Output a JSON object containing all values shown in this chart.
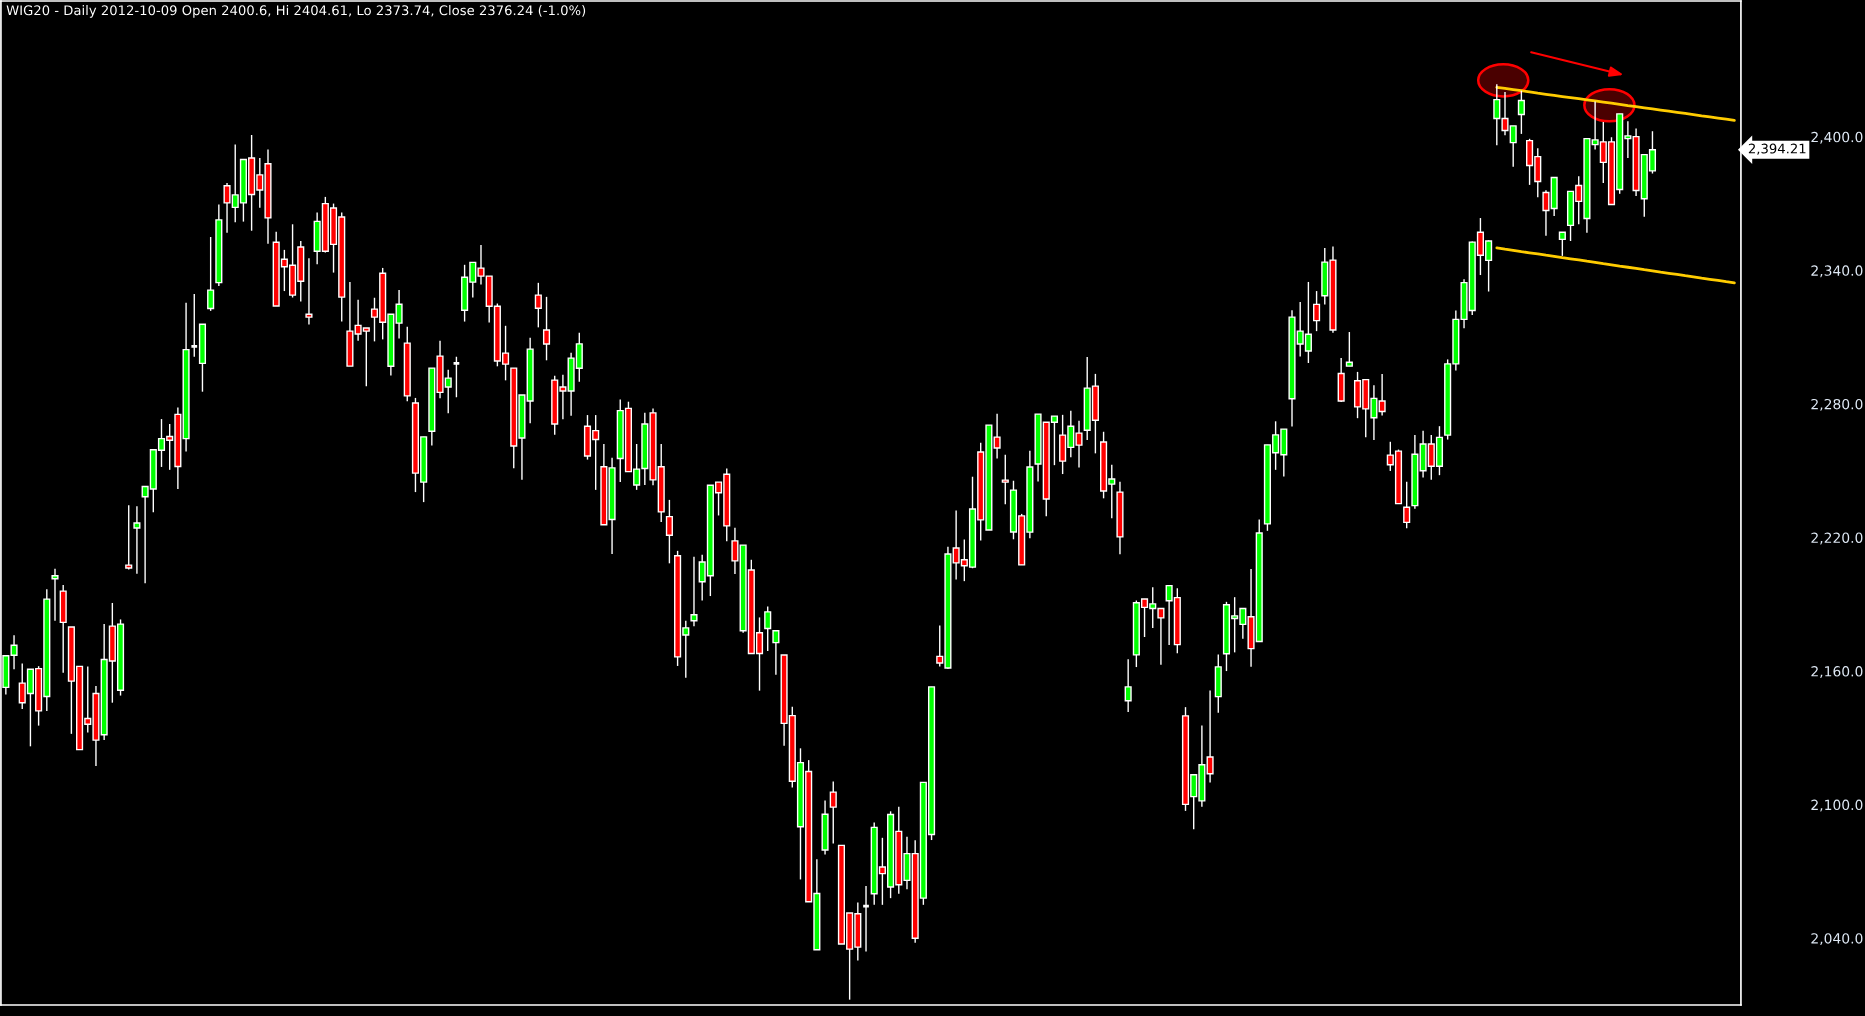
{
  "chart_data": {
    "type": "candlestick",
    "title": "WIG20 - Daily 2012-10-09 Open 2400.6, Hi 2404.61, Lo 2373.74, Close 2376.24 (-1.0%)",
    "categories": [
      null,
      null,
      null,
      null,
      null,
      null,
      null,
      null,
      null,
      null,
      null,
      null,
      null,
      null,
      null,
      null,
      null,
      null,
      null,
      null,
      null,
      null,
      null,
      null,
      null,
      null,
      null,
      null,
      null,
      null,
      null,
      null,
      null,
      null,
      null,
      null,
      null,
      null,
      null,
      null,
      null,
      null,
      null,
      null,
      null,
      null,
      null,
      null,
      null,
      null,
      null,
      null,
      null,
      null,
      null,
      null,
      null,
      null,
      null,
      null,
      null,
      null,
      null,
      null,
      null,
      null,
      null,
      null,
      null,
      null,
      null,
      null,
      null,
      null,
      null,
      null,
      null,
      null,
      null,
      null,
      null,
      null,
      null,
      null,
      null,
      null,
      null,
      null,
      null,
      null,
      null,
      null,
      null,
      null,
      null,
      null,
      null,
      null,
      null,
      null,
      null,
      null,
      null,
      null,
      null,
      null,
      null,
      null,
      null,
      null,
      null,
      null,
      null,
      null,
      null,
      null,
      null,
      null,
      null,
      null,
      null,
      null,
      null,
      null,
      null,
      null,
      null,
      null,
      null,
      null,
      null,
      null,
      null,
      null,
      null,
      null,
      null,
      null,
      null,
      null,
      null,
      null,
      null,
      null,
      null,
      null,
      null,
      null,
      null,
      null,
      null,
      null,
      null,
      null,
      null,
      null,
      null,
      null,
      null,
      null,
      null,
      null,
      null,
      null,
      null,
      null,
      null,
      null,
      null,
      null,
      null,
      null,
      null,
      null,
      null,
      null,
      null,
      null,
      null,
      null,
      null,
      null,
      null,
      null,
      null,
      null,
      null,
      null,
      null,
      null,
      null,
      null,
      null,
      null,
      null,
      null,
      null,
      null,
      null,
      null,
      null,
      null,
      null,
      null,
      null,
      null,
      null,
      null,
      null,
      null,
      null,
      null
    ],
    "ohlc": [
      [
        2152.7,
        2166.9,
        2149.5,
        2166.9
      ],
      [
        2167.1,
        2176.1,
        2160.8,
        2171.6
      ],
      [
        2154.6,
        2163.4,
        2143.0,
        2145.8
      ],
      [
        2149.9,
        2160.8,
        2126.2,
        2160.8
      ],
      [
        2161.1,
        2162.2,
        2135.5,
        2142.1
      ],
      [
        2148.6,
        2196.8,
        2142.1,
        2192.3
      ],
      [
        2201.5,
        2206.0,
        2182.6,
        2202.8
      ],
      [
        2195.9,
        2198.7,
        2159.3,
        2181.9
      ],
      [
        2179.8,
        2179.8,
        2131.8,
        2155.5
      ],
      [
        2162.1,
        2162.1,
        2124.7,
        2124.7
      ],
      [
        2138.7,
        2162.1,
        2132.4,
        2136.1
      ],
      [
        2149.9,
        2153.3,
        2117.4,
        2129.0
      ],
      [
        2131.4,
        2181.1,
        2129.0,
        2165.2
      ],
      [
        2180.2,
        2190.6,
        2145.8,
        2164.5
      ],
      [
        2151.4,
        2183.2,
        2149.0,
        2181.1
      ],
      [
        2207.6,
        2234.5,
        2205.6,
        2206.3
      ],
      [
        2224.3,
        2234.0,
        2203.7,
        2226.5
      ],
      [
        2238.3,
        2242.9,
        2199.4,
        2242.9
      ],
      [
        2241.8,
        2259.4,
        2231.4,
        2259.4
      ],
      [
        2259.2,
        2273.2,
        2251.7,
        2264.4
      ],
      [
        2265.4,
        2271.0,
        2250.4,
        2263.7
      ],
      [
        2275.3,
        2278.4,
        2241.8,
        2251.9
      ],
      [
        2264.4,
        2325.5,
        2258.6,
        2304.4
      ],
      [
        2305.9,
        2329.4,
        2301.2,
        2305.9
      ],
      [
        2298.2,
        2315.8,
        2285.5,
        2315.8
      ],
      [
        2322.9,
        2355.0,
        2321.8,
        2331.1
      ],
      [
        2334.5,
        2369.6,
        2333.0,
        2362.7
      ],
      [
        2378.0,
        2379.3,
        2356.9,
        2370.3
      ],
      [
        2368.3,
        2396.5,
        2361.6,
        2373.9
      ],
      [
        2370.3,
        2389.8,
        2361.9,
        2389.8
      ],
      [
        2390.5,
        2400.8,
        2357.8,
        2374.1
      ],
      [
        2382.9,
        2390.5,
        2368.1,
        2376.1
      ],
      [
        2387.9,
        2394.3,
        2351.9,
        2363.6
      ],
      [
        2352.6,
        2357.3,
        2324.0,
        2324.0
      ],
      [
        2345.0,
        2349.2,
        2330.7,
        2341.6
      ],
      [
        2342.3,
        2360.7,
        2327.8,
        2328.9
      ],
      [
        2350.5,
        2353.2,
        2326.0,
        2335.1
      ],
      [
        2320.3,
        2345.4,
        2315.7,
        2319.0
      ],
      [
        2348.6,
        2366.0,
        2342.8,
        2362.0
      ],
      [
        2370.0,
        2373.0,
        2348.0,
        2348.6
      ],
      [
        2368.0,
        2370.0,
        2339.0,
        2351.7
      ],
      [
        2364.0,
        2366.0,
        2317.0,
        2328.0
      ],
      [
        2312.7,
        2334.8,
        2297.0,
        2297.0
      ],
      [
        2315.3,
        2326.8,
        2308.4,
        2311.4
      ],
      [
        2314.1,
        2314.1,
        2287.9,
        2312.7
      ],
      [
        2322.6,
        2327.7,
        2308.1,
        2319.0
      ],
      [
        2338.7,
        2341.1,
        2309.0,
        2316.7
      ],
      [
        2296.9,
        2320.3,
        2292.8,
        2320.3
      ],
      [
        2316.3,
        2331.2,
        2309.4,
        2324.8
      ],
      [
        2307.3,
        2314.7,
        2281.2,
        2283.6
      ],
      [
        2280.4,
        2282.7,
        2240.4,
        2248.9
      ],
      [
        2244.9,
        2265.2,
        2235.9,
        2265.2
      ],
      [
        2267.7,
        2296.1,
        2261.3,
        2296.1
      ],
      [
        2301.5,
        2308.4,
        2282.5,
        2285.2
      ],
      [
        2287.6,
        2295.4,
        2275.8,
        2291.6
      ],
      [
        2298.2,
        2301.2,
        2283.0,
        2298.2
      ],
      [
        2322.1,
        2342.5,
        2317.0,
        2336.9
      ],
      [
        2334.7,
        2343.6,
        2327.8,
        2343.6
      ],
      [
        2341.0,
        2351.4,
        2333.6,
        2337.4
      ],
      [
        2337.4,
        2337.4,
        2316.6,
        2323.9
      ],
      [
        2323.9,
        2325.1,
        2296.9,
        2299.3
      ],
      [
        2302.8,
        2315.1,
        2290.6,
        2297.9
      ],
      [
        2296.1,
        2296.1,
        2251.1,
        2261.1
      ],
      [
        2264.7,
        2284.0,
        2245.9,
        2284.0
      ],
      [
        2281.3,
        2309.7,
        2271.3,
        2304.6
      ],
      [
        2328.9,
        2334.4,
        2314.4,
        2323.0
      ],
      [
        2313.2,
        2328.1,
        2299.6,
        2306.9
      ],
      [
        2290.7,
        2292.7,
        2266.2,
        2271.0
      ],
      [
        2287.6,
        2293.1,
        2273.1,
        2285.8
      ],
      [
        2285.8,
        2303.0,
        2274.7,
        2300.6
      ],
      [
        2296.0,
        2312.0,
        2290.0,
        2307.0
      ],
      [
        2270.0,
        2275.0,
        2255.0,
        2256.6
      ],
      [
        2268.0,
        2275.0,
        2241.4,
        2264.0
      ],
      [
        2251.8,
        2262.0,
        2225.7,
        2225.7
      ],
      [
        2228.1,
        2255.8,
        2212.6,
        2251.3
      ],
      [
        2255.5,
        2282.0,
        2244.9,
        2277.0
      ],
      [
        2278.0,
        2281.0,
        2249.6,
        2249.6
      ],
      [
        2243.6,
        2262.0,
        2241.4,
        2250.7
      ],
      [
        2251.0,
        2276.0,
        2243.6,
        2271.0
      ],
      [
        2276.0,
        2278.0,
        2243.5,
        2245.9
      ],
      [
        2251.8,
        2262.0,
        2227.0,
        2231.5
      ],
      [
        2229.4,
        2236.9,
        2208.4,
        2221.0
      ],
      [
        2211.8,
        2214.0,
        2162.3,
        2166.4
      ],
      [
        2176.2,
        2182.6,
        2157.0,
        2179.4
      ],
      [
        2182.6,
        2211.4,
        2180.1,
        2185.3
      ],
      [
        2200.1,
        2212.2,
        2191.7,
        2209.0
      ],
      [
        2202.8,
        2243.5,
        2193.7,
        2243.5
      ],
      [
        2244.9,
        2244.9,
        2229.9,
        2240.1
      ],
      [
        2248.4,
        2251.0,
        2218.3,
        2225.2
      ],
      [
        2218.5,
        2224.4,
        2203.6,
        2209.5
      ],
      [
        2178.1,
        2216.6,
        2177.2,
        2216.6
      ],
      [
        2205.4,
        2210.0,
        2167.9,
        2167.9
      ],
      [
        2177.2,
        2184.1,
        2151.2,
        2167.9
      ],
      [
        2179.1,
        2189.0,
        2169.0,
        2186.6
      ],
      [
        2172.8,
        2178.1,
        2158.4,
        2178.1
      ],
      [
        2167.2,
        2167.2,
        2126.4,
        2136.5
      ],
      [
        2140.0,
        2144.0,
        2107.7,
        2110.5
      ],
      [
        2090.1,
        2125.3,
        2066.4,
        2118.9
      ],
      [
        2114.9,
        2120.0,
        2056.4,
        2056.4
      ],
      [
        2034.8,
        2075.5,
        2034.8,
        2060.1
      ],
      [
        2079.6,
        2101.9,
        2077.6,
        2095.7
      ],
      [
        2105.6,
        2110.4,
        2082.5,
        2098.9
      ],
      [
        2081.7,
        2081.7,
        2037.4,
        2037.4
      ],
      [
        2051.3,
        2051.3,
        2012.4,
        2035.1
      ],
      [
        2051.0,
        2056.0,
        2030.0,
        2036.0
      ],
      [
        2054.4,
        2063.5,
        2034.0,
        2054.4
      ],
      [
        2060.0,
        2092.0,
        2055.0,
        2089.8
      ],
      [
        2072.0,
        2085.1,
        2055.0,
        2069.0
      ],
      [
        2063.0,
        2097.0,
        2058.0,
        2095.6
      ],
      [
        2088.0,
        2099.0,
        2060.0,
        2064.0
      ],
      [
        2066.0,
        2085.6,
        2062.0,
        2078.0
      ],
      [
        2078.0,
        2084.0,
        2038.0,
        2040.0
      ],
      [
        2058.0,
        2110.0,
        2055.0,
        2110.0
      ],
      [
        2086.6,
        2152.9,
        2084.1,
        2152.9
      ],
      [
        2166.6,
        2180.5,
        2162.1,
        2163.6
      ],
      [
        2161.4,
        2215.9,
        2161.1,
        2212.6
      ],
      [
        2215.3,
        2232.1,
        2201.1,
        2208.6
      ],
      [
        2210.0,
        2219.1,
        2200.4,
        2207.3
      ],
      [
        2206.7,
        2247.3,
        2206.2,
        2232.8
      ],
      [
        2258.4,
        2262.6,
        2218.6,
        2227.9
      ],
      [
        2223.4,
        2270.5,
        2223.4,
        2270.5
      ],
      [
        2265.1,
        2275.6,
        2255.5,
        2260.2
      ],
      [
        2245.8,
        2257.2,
        2234.9,
        2244.9
      ],
      [
        2222.5,
        2245.5,
        2219.2,
        2241.3
      ],
      [
        2229.7,
        2230.6,
        2207.7,
        2207.7
      ],
      [
        2222.4,
        2259.0,
        2219.7,
        2251.7
      ],
      [
        2253.0,
        2275.4,
        2245.2,
        2275.4
      ],
      [
        2271.8,
        2271.8,
        2229.5,
        2237.3
      ],
      [
        2271.8,
        2274.5,
        2252.5,
        2274.5
      ],
      [
        2266.0,
        2275.1,
        2248.5,
        2254.3
      ],
      [
        2260.5,
        2276.9,
        2256.0,
        2270.0
      ],
      [
        2266.9,
        2272.4,
        2251.5,
        2261.5
      ],
      [
        2268.2,
        2301.1,
        2263.8,
        2287.1
      ],
      [
        2288.0,
        2293.5,
        2257.8,
        2272.7
      ],
      [
        2262.9,
        2267.5,
        2237.6,
        2240.9
      ],
      [
        2244.0,
        2252.7,
        2228.6,
        2246.3
      ],
      [
        2240.4,
        2245.1,
        2212.5,
        2220.3
      ],
      [
        2146.7,
        2165.3,
        2141.6,
        2152.9
      ],
      [
        2167.3,
        2191.7,
        2161.8,
        2190.7
      ],
      [
        2192.4,
        2192.4,
        2175.3,
        2188.6
      ],
      [
        2188.1,
        2197.7,
        2179.4,
        2190.2
      ],
      [
        2188.1,
        2188.1,
        2162.8,
        2183.9
      ],
      [
        2191.6,
        2198.4,
        2171.7,
        2198.4
      ],
      [
        2193.0,
        2197.2,
        2168.0,
        2171.9
      ],
      [
        2139.9,
        2143.8,
        2097.2,
        2100.1
      ],
      [
        2103.6,
        2113.4,
        2089.0,
        2113.4
      ],
      [
        2101.7,
        2135.6,
        2099.1,
        2117.9
      ],
      [
        2121.4,
        2151.3,
        2109.9,
        2113.9
      ],
      [
        2148.5,
        2167.5,
        2141.3,
        2161.9
      ],
      [
        2167.8,
        2191.1,
        2160.0,
        2189.8
      ],
      [
        2183.6,
        2193.2,
        2168.4,
        2184.8
      ],
      [
        2181.0,
        2188.1,
        2174.5,
        2188.1
      ],
      [
        2184.4,
        2205.9,
        2161.9,
        2170.1
      ],
      [
        2173.3,
        2228.1,
        2173.3,
        2222.0
      ],
      [
        2226.1,
        2261.6,
        2223.0,
        2261.6
      ],
      [
        2258.1,
        2272.2,
        2250.4,
        2266.1
      ],
      [
        2257.2,
        2268.7,
        2247.4,
        2268.7
      ],
      [
        2282.3,
        2322.1,
        2269.9,
        2319.0
      ],
      [
        2306.9,
        2325.8,
        2301.3,
        2312.7
      ],
      [
        2303.8,
        2334.8,
        2298.4,
        2311.3
      ],
      [
        2324.7,
        2330.7,
        2312.7,
        2317.4
      ],
      [
        2328.6,
        2350.0,
        2324.7,
        2343.7
      ],
      [
        2344.6,
        2350.7,
        2312.0,
        2313.2
      ],
      [
        2293.7,
        2300.6,
        2280.9,
        2281.3
      ],
      [
        2297.0,
        2312.3,
        2297.0,
        2298.7
      ],
      [
        2290.4,
        2294.4,
        2273.6,
        2278.7
      ],
      [
        2290.9,
        2290.9,
        2265.0,
        2277.8
      ],
      [
        2273.8,
        2288.4,
        2263.8,
        2282.5
      ],
      [
        2281.3,
        2293.5,
        2274.8,
        2276.6
      ],
      [
        2257.0,
        2263.0,
        2249.9,
        2252.7
      ],
      [
        2258.8,
        2259.5,
        2235.2,
        2235.2
      ],
      [
        2233.6,
        2245.0,
        2224.2,
        2226.8
      ],
      [
        2234.3,
        2266.1,
        2232.9,
        2257.4
      ],
      [
        2250.0,
        2268.0,
        2247.0,
        2262.0
      ],
      [
        2262.0,
        2266.0,
        2246.0,
        2252.0
      ],
      [
        2252.0,
        2270.0,
        2248.0,
        2265.0
      ],
      [
        2266.0,
        2300.0,
        2264.0,
        2298.0
      ],
      [
        2298.0,
        2322.0,
        2295.0,
        2318.0
      ],
      [
        2318.0,
        2336.0,
        2314.0,
        2334.5
      ],
      [
        2322.0,
        2353.0,
        2320.0,
        2352.7
      ],
      [
        2357.1,
        2363.5,
        2337.9,
        2346.8
      ],
      [
        2344.5,
        2353.5,
        2330.5,
        2353.2
      ],
      [
        2408.2,
        2423.6,
        2396.2,
        2416.7
      ],
      [
        2408.2,
        2420.1,
        2400.7,
        2402.8
      ],
      [
        2397.4,
        2404.9,
        2386.5,
        2404.9
      ],
      [
        2410.0,
        2420.7,
        2401.3,
        2416.3
      ],
      [
        2398.3,
        2399.1,
        2378.4,
        2387.1
      ],
      [
        2391.1,
        2394.9,
        2372.8,
        2379.9
      ],
      [
        2375.0,
        2376.0,
        2355.6,
        2366.9
      ],
      [
        2367.8,
        2381.7,
        2364.4,
        2381.7
      ],
      [
        2353.9,
        2357.1,
        2346.5,
        2357.1
      ],
      [
        2360.2,
        2375.5,
        2353.2,
        2375.5
      ],
      [
        2378.1,
        2382.3,
        2360.7,
        2371.0
      ],
      [
        2363.3,
        2399.2,
        2356.9,
        2399.2
      ],
      [
        2396.5,
        2415.9,
        2394.3,
        2398.6
      ],
      [
        2397.7,
        2406.7,
        2379.3,
        2388.5
      ],
      [
        2397.7,
        2399.8,
        2369.6,
        2369.6
      ],
      [
        2376.3,
        2410.3,
        2374.4,
        2410.3
      ],
      [
        2399.2,
        2407.0,
        2390.5,
        2400.4
      ],
      [
        2400.1,
        2403.7,
        2373.4,
        2375.9
      ],
      [
        2372.2,
        2392.0,
        2364.1,
        2392.0
      ],
      [
        2384.7,
        2402.5,
        2383.5,
        2394.21
      ],
      null,
      null,
      null,
      null,
      null,
      null,
      null,
      null,
      null,
      null
    ],
    "colors": [
      "#00ff00",
      "#00ff00",
      "#ff0000",
      "#00ff00",
      "#ff0000",
      "#00ff00",
      "#00ff00",
      "#ff0000",
      "#ff0000",
      "#ff0000",
      "#ff0000",
      "#ff0000",
      "#00ff00",
      "#ff0000",
      "#00ff00",
      "#ff0000",
      "#00ff00",
      "#00ff00",
      "#00ff00",
      "#00ff00",
      "#ff0000",
      "#ff0000",
      "#00ff00",
      "#ffffff",
      "#00ff00",
      "#00ff00",
      "#00ff00",
      "#ff0000",
      "#00ff00",
      "#00ff00",
      "#ff0000",
      "#ff0000",
      "#ff0000",
      "#ff0000",
      "#ff0000",
      "#ff0000",
      "#ff0000",
      "#ff0000",
      "#00ff00",
      "#ff0000",
      "#ff0000",
      "#ff0000",
      "#ff0000",
      "#ff0000",
      "#ff0000",
      "#ff0000",
      "#ff0000",
      "#00ff00",
      "#00ff00",
      "#ff0000",
      "#ff0000",
      "#00ff00",
      "#00ff00",
      "#ff0000",
      "#00ff00",
      "#ffffff",
      "#00ff00",
      "#00ff00",
      "#ff0000",
      "#ff0000",
      "#ff0000",
      "#ff0000",
      "#ff0000",
      "#00ff00",
      "#00ff00",
      "#ff0000",
      "#ff0000",
      "#ff0000",
      "#ff0000",
      "#00ff00",
      "#00ff00",
      "#ff0000",
      "#ff0000",
      "#ff0000",
      "#00ff00",
      "#00ff00",
      "#ff0000",
      "#00ff00",
      "#00ff00",
      "#ff0000",
      "#ff0000",
      "#ff0000",
      "#ff0000",
      "#00ff00",
      "#00ff00",
      "#00ff00",
      "#00ff00",
      "#ff0000",
      "#ff0000",
      "#ff0000",
      "#00ff00",
      "#ff0000",
      "#ff0000",
      "#00ff00",
      "#00ff00",
      "#ff0000",
      "#ff0000",
      "#00ff00",
      "#ff0000",
      "#00ff00",
      "#00ff00",
      "#ff0000",
      "#ff0000",
      "#ff0000",
      "#ff0000",
      "#ffffff",
      "#00ff00",
      "#ff0000",
      "#00ff00",
      "#ff0000",
      "#00ff00",
      "#ff0000",
      "#00ff00",
      "#00ff00",
      "#ff0000",
      "#00ff00",
      "#ff0000",
      "#ff0000",
      "#00ff00",
      "#ff0000",
      "#00ff00",
      "#ff0000",
      "#ff0000",
      "#00ff00",
      "#ff0000",
      "#00ff00",
      "#00ff00",
      "#ff0000",
      "#00ff00",
      "#ff0000",
      "#00ff00",
      "#ff0000",
      "#00ff00",
      "#ff0000",
      "#ff0000",
      "#00ff00",
      "#ff0000",
      "#00ff00",
      "#00ff00",
      "#ff0000",
      "#00ff00",
      "#ff0000",
      "#00ff00",
      "#ff0000",
      "#ff0000",
      "#00ff00",
      "#00ff00",
      "#ff0000",
      "#00ff00",
      "#00ff00",
      "#00ff00",
      "#00ff00",
      "#ff0000",
      "#00ff00",
      "#00ff00",
      "#00ff00",
      "#00ff00",
      "#00ff00",
      "#00ff00",
      "#00ff00",
      "#ff0000",
      "#00ff00",
      "#ff0000",
      "#ff0000",
      "#00ff00",
      "#ff0000",
      "#ff0000",
      "#00ff00",
      "#ff0000",
      "#ff0000",
      "#ff0000",
      "#ff0000",
      "#00ff00",
      "#00ff00",
      "#ff0000",
      "#00ff00",
      "#00ff00",
      "#00ff00",
      "#00ff00",
      "#00ff00",
      "#ff0000",
      "#00ff00",
      "#00ff00",
      "#ff0000",
      "#00ff00",
      "#00ff00",
      "#ff0000",
      "#ff0000",
      "#ff0000",
      "#00ff00",
      "#00ff00",
      "#00ff00",
      "#ff0000",
      "#00ff00",
      "#00ff00",
      "#ff0000",
      "#ff0000",
      "#00ff00",
      "#00ff00",
      "#ff0000",
      "#00ff00",
      "#00ff00",
      null,
      null,
      null,
      null,
      null,
      null,
      null,
      null,
      null,
      null
    ],
    "series": [
      {
        "type": "line",
        "color": "#ffcc00",
        "values": [
          null,
          null,
          null,
          null,
          null,
          null,
          null,
          null,
          null,
          null,
          null,
          null,
          null,
          null,
          null,
          null,
          null,
          null,
          null,
          null,
          null,
          null,
          null,
          null,
          null,
          null,
          null,
          null,
          null,
          null,
          null,
          null,
          null,
          null,
          null,
          null,
          null,
          null,
          null,
          null,
          null,
          null,
          null,
          null,
          null,
          null,
          null,
          null,
          null,
          null,
          null,
          null,
          null,
          null,
          null,
          null,
          null,
          null,
          null,
          null,
          null,
          null,
          null,
          null,
          null,
          null,
          null,
          null,
          null,
          null,
          null,
          null,
          null,
          null,
          null,
          null,
          null,
          null,
          null,
          null,
          null,
          null,
          null,
          null,
          null,
          null,
          null,
          null,
          null,
          null,
          null,
          null,
          null,
          null,
          null,
          null,
          null,
          null,
          null,
          null,
          null,
          null,
          null,
          null,
          null,
          null,
          null,
          null,
          null,
          null,
          null,
          null,
          null,
          null,
          null,
          null,
          null,
          null,
          null,
          null,
          null,
          null,
          null,
          null,
          null,
          null,
          null,
          null,
          null,
          null,
          null,
          null,
          null,
          null,
          null,
          null,
          null,
          null,
          null,
          null,
          null,
          null,
          null,
          null,
          null,
          null,
          null,
          null,
          null,
          null,
          null,
          null,
          null,
          null,
          null,
          null,
          null,
          null,
          null,
          null,
          null,
          null,
          null,
          null,
          null,
          null,
          null,
          null,
          null,
          null,
          null,
          null,
          null,
          null,
          null,
          null,
          null,
          null,
          null,
          null,
          null,
          null,
          2422.2,
          2421.7,
          2421.2,
          2420.7,
          2420.2,
          2419.6,
          2419.1,
          2418.6,
          2418.1,
          2417.6,
          2417.1,
          2416.6,
          2416.1,
          2415.6,
          2415.1,
          2414.6,
          2414.0,
          2413.5,
          2413.0,
          2412.5,
          2412.0,
          2411.5,
          2411.0,
          2410.5,
          2410.0,
          2409.4,
          2408.9,
          2408.4,
          2407.9,
          2407.4
        ]
      },
      {
        "type": "line",
        "color": "#ffcc00",
        "values": [
          null,
          null,
          null,
          null,
          null,
          null,
          null,
          null,
          null,
          null,
          null,
          null,
          null,
          null,
          null,
          null,
          null,
          null,
          null,
          null,
          null,
          null,
          null,
          null,
          null,
          null,
          null,
          null,
          null,
          null,
          null,
          null,
          null,
          null,
          null,
          null,
          null,
          null,
          null,
          null,
          null,
          null,
          null,
          null,
          null,
          null,
          null,
          null,
          null,
          null,
          null,
          null,
          null,
          null,
          null,
          null,
          null,
          null,
          null,
          null,
          null,
          null,
          null,
          null,
          null,
          null,
          null,
          null,
          null,
          null,
          null,
          null,
          null,
          null,
          null,
          null,
          null,
          null,
          null,
          null,
          null,
          null,
          null,
          null,
          null,
          null,
          null,
          null,
          null,
          null,
          null,
          null,
          null,
          null,
          null,
          null,
          null,
          null,
          null,
          null,
          null,
          null,
          null,
          null,
          null,
          null,
          null,
          null,
          null,
          null,
          null,
          null,
          null,
          null,
          null,
          null,
          null,
          null,
          null,
          null,
          null,
          null,
          null,
          null,
          null,
          null,
          null,
          null,
          null,
          null,
          null,
          null,
          null,
          null,
          null,
          null,
          null,
          null,
          null,
          null,
          null,
          null,
          null,
          null,
          null,
          null,
          null,
          null,
          null,
          null,
          null,
          null,
          null,
          null,
          null,
          null,
          null,
          null,
          null,
          null,
          null,
          null,
          null,
          null,
          null,
          null,
          null,
          null,
          null,
          null,
          null,
          null,
          null,
          null,
          null,
          null,
          null,
          null,
          null,
          null,
          null,
          null,
          2350.1,
          2349.5,
          2349.0,
          2348.4,
          2347.9,
          2347.4,
          2346.8,
          2346.3,
          2345.7,
          2345.2,
          2344.7,
          2344.1,
          2343.6,
          2343.0,
          2342.5,
          2341.9,
          2341.4,
          2340.9,
          2340.3,
          2339.8,
          2339.2,
          2338.7,
          2338.2,
          2337.6,
          2337.1,
          2336.5,
          2336.0,
          2335.5,
          2334.9,
          2334.4
        ]
      }
    ],
    "ylim": [
      2010,
      2461
    ],
    "yticks": [
      {
        "value": 2040,
        "label": "2,040.0"
      },
      {
        "value": 2100,
        "label": "2,100.0"
      },
      {
        "value": 2160,
        "label": "2,160.0"
      },
      {
        "value": 2220,
        "label": "2,220.0"
      },
      {
        "value": 2280,
        "label": "2,280.0"
      },
      {
        "value": 2340,
        "label": "2,340.0"
      },
      {
        "value": 2400,
        "label": "2,400.0"
      }
    ],
    "tick_labels": "y",
    "annotations": [
      "2,394.21"
    ]
  }
}
